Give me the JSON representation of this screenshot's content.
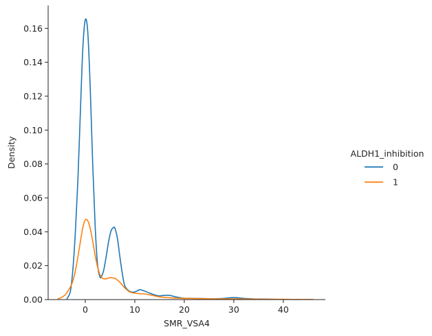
{
  "chart_data": {
    "type": "line",
    "xlabel": "SMR_VSA4",
    "ylabel": "Density",
    "xlim": [
      -7.5,
      48.5
    ],
    "ylim": [
      0,
      0.1735
    ],
    "xticks": [
      0,
      10,
      20,
      30,
      40
    ],
    "yticks": [
      0.0,
      0.02,
      0.04,
      0.06,
      0.08,
      0.1,
      0.12,
      0.14,
      0.16
    ],
    "ytick_labels": [
      "0.00",
      "0.02",
      "0.04",
      "0.06",
      "0.08",
      "0.10",
      "0.12",
      "0.14",
      "0.16"
    ],
    "grid": false,
    "legend": {
      "title": "ALDH1_inhibition",
      "placement": "right-outside"
    },
    "series": [
      {
        "name": "0",
        "color": "#1f77b4",
        "x": [
          -3.7,
          -3.0,
          -2.5,
          -2.0,
          -1.5,
          -1.0,
          -0.5,
          0.0,
          0.5,
          1.0,
          1.5,
          2.0,
          2.5,
          3.0,
          3.3,
          3.7,
          4.2,
          4.7,
          5.2,
          5.7,
          6.0,
          6.5,
          7.0,
          7.5,
          8.0,
          9.0,
          10.0,
          11.0,
          12.0,
          13.0,
          14.0,
          15.0,
          16.0,
          17.0,
          18.0,
          19.0,
          20.0,
          22.0,
          24.0,
          26.0,
          28.0,
          30.0,
          32.0,
          34.0,
          36.0,
          38.0,
          39.0
        ],
        "y": [
          0.0005,
          0.005,
          0.018,
          0.04,
          0.07,
          0.11,
          0.148,
          0.165,
          0.158,
          0.125,
          0.08,
          0.043,
          0.02,
          0.0132,
          0.0138,
          0.017,
          0.025,
          0.034,
          0.0405,
          0.0425,
          0.042,
          0.036,
          0.025,
          0.015,
          0.008,
          0.0048,
          0.0045,
          0.0058,
          0.005,
          0.0038,
          0.0028,
          0.0022,
          0.0025,
          0.0025,
          0.0018,
          0.0012,
          0.0008,
          0.0007,
          0.0006,
          0.0005,
          0.0007,
          0.0012,
          0.0007,
          0.0004,
          0.0003,
          0.0002,
          0.0001
        ]
      },
      {
        "name": "1",
        "color": "#ff7f0e",
        "x": [
          -5.5,
          -5.0,
          -4.0,
          -3.0,
          -2.5,
          -2.0,
          -1.5,
          -1.0,
          -0.5,
          0.0,
          0.5,
          1.0,
          1.5,
          2.0,
          2.5,
          3.0,
          3.5,
          4.0,
          4.5,
          5.0,
          5.5,
          6.0,
          6.5,
          7.0,
          7.5,
          8.0,
          9.0,
          10.0,
          11.0,
          12.0,
          13.0,
          14.0,
          15.0,
          16.0,
          17.0,
          18.0,
          20.0,
          22.0,
          24.0,
          26.0,
          28.0,
          30.0,
          32.0,
          34.0,
          36.0,
          38.0,
          40.0,
          42.0,
          44.0,
          46.0
        ],
        "y": [
          0.0005,
          0.001,
          0.003,
          0.0075,
          0.011,
          0.017,
          0.025,
          0.034,
          0.0425,
          0.047,
          0.0465,
          0.042,
          0.0345,
          0.026,
          0.019,
          0.0145,
          0.0125,
          0.0122,
          0.0125,
          0.013,
          0.0128,
          0.0125,
          0.0115,
          0.0102,
          0.0085,
          0.0068,
          0.0045,
          0.0038,
          0.0035,
          0.0033,
          0.0028,
          0.0022,
          0.0016,
          0.0013,
          0.0011,
          0.0009,
          0.0007,
          0.0006,
          0.0005,
          0.0004,
          0.0004,
          0.0004,
          0.0003,
          0.0003,
          0.0002,
          0.0002,
          0.0002,
          0.0001,
          0.0001,
          0.0001
        ]
      }
    ]
  }
}
